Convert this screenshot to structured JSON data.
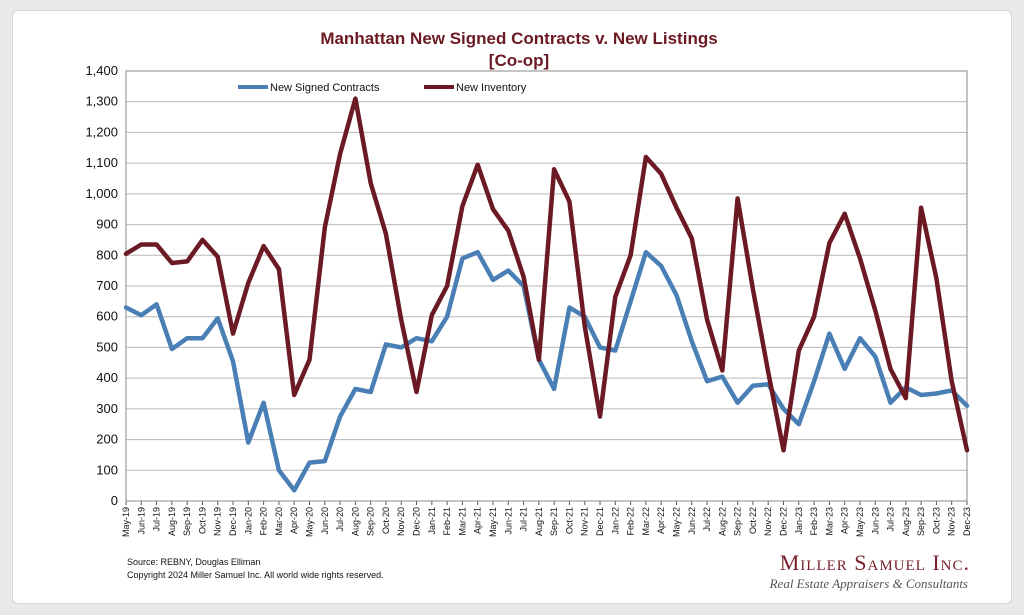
{
  "chart_data": {
    "type": "line",
    "title": "Manhattan New Signed Contracts v. New Listings",
    "subtitle": "[Co-op]",
    "xlabel": "",
    "ylabel": "",
    "ylim": [
      0,
      1400
    ],
    "yticks": [
      "0",
      "100",
      "200",
      "300",
      "400",
      "500",
      "600",
      "700",
      "800",
      "900",
      "1,000",
      "1,100",
      "1,200",
      "1,300",
      "1,400"
    ],
    "grid": true,
    "legend_position": "top-left",
    "categories": [
      "May-19",
      "Jun-19",
      "Jul-19",
      "Aug-19",
      "Sep-19",
      "Oct-19",
      "Nov-19",
      "Dec-19",
      "Jan-20",
      "Feb-20",
      "Mar-20",
      "Apr-20",
      "May-20",
      "Jun-20",
      "Jul-20",
      "Aug-20",
      "Sep-20",
      "Oct-20",
      "Nov-20",
      "Dec-20",
      "Jan-21",
      "Feb-21",
      "Mar-21",
      "Apr-21",
      "May-21",
      "Jun-21",
      "Jul-21",
      "Aug-21",
      "Sep-21",
      "Oct-21",
      "Nov-21",
      "Dec-21",
      "Jan-22",
      "Feb-22",
      "Mar-22",
      "Apr-22",
      "May-22",
      "Jun-22",
      "Jul-22",
      "Aug-22",
      "Sep-22",
      "Oct-22",
      "Nov-22",
      "Dec-22",
      "Jan-23",
      "Feb-23",
      "Mar-23",
      "Apr-23",
      "May-23",
      "Jun-23",
      "Jul-23",
      "Aug-23",
      "Sep-23",
      "Oct-23",
      "Nov-23",
      "Dec-23"
    ],
    "series": [
      {
        "name": "New Signed Contracts",
        "color": "#4a7fb5",
        "values": [
          630,
          605,
          640,
          495,
          530,
          530,
          595,
          455,
          190,
          320,
          100,
          35,
          125,
          130,
          275,
          365,
          355,
          510,
          500,
          530,
          520,
          600,
          790,
          810,
          720,
          750,
          700,
          460,
          365,
          630,
          600,
          500,
          490,
          650,
          810,
          765,
          670,
          520,
          390,
          405,
          320,
          375,
          380,
          300,
          250,
          390,
          545,
          430,
          530,
          470,
          320,
          370,
          345,
          350,
          360,
          310
        ]
      },
      {
        "name": "New Inventory",
        "color": "#6b1a24",
        "values": [
          805,
          835,
          835,
          775,
          780,
          850,
          795,
          545,
          710,
          830,
          755,
          345,
          460,
          890,
          1130,
          1310,
          1035,
          870,
          590,
          355,
          605,
          700,
          960,
          1095,
          950,
          880,
          730,
          460,
          1080,
          975,
          570,
          275,
          665,
          800,
          1120,
          1065,
          955,
          855,
          590,
          425,
          985,
          690,
          420,
          165,
          490,
          600,
          840,
          935,
          790,
          620,
          430,
          335,
          955,
          725,
          390,
          165
        ]
      }
    ],
    "legend": [
      "New Signed Contracts",
      "New Inventory"
    ],
    "annotations": {
      "source": "Source: REBNY, Douglas Elliman",
      "copyright": "Copyright 2024 Miller Samuel Inc.  All world wide rights reserved."
    }
  },
  "branding": {
    "name": "Miller Samuel Inc.",
    "tagline": "Real Estate Appraisers & Consultants"
  }
}
